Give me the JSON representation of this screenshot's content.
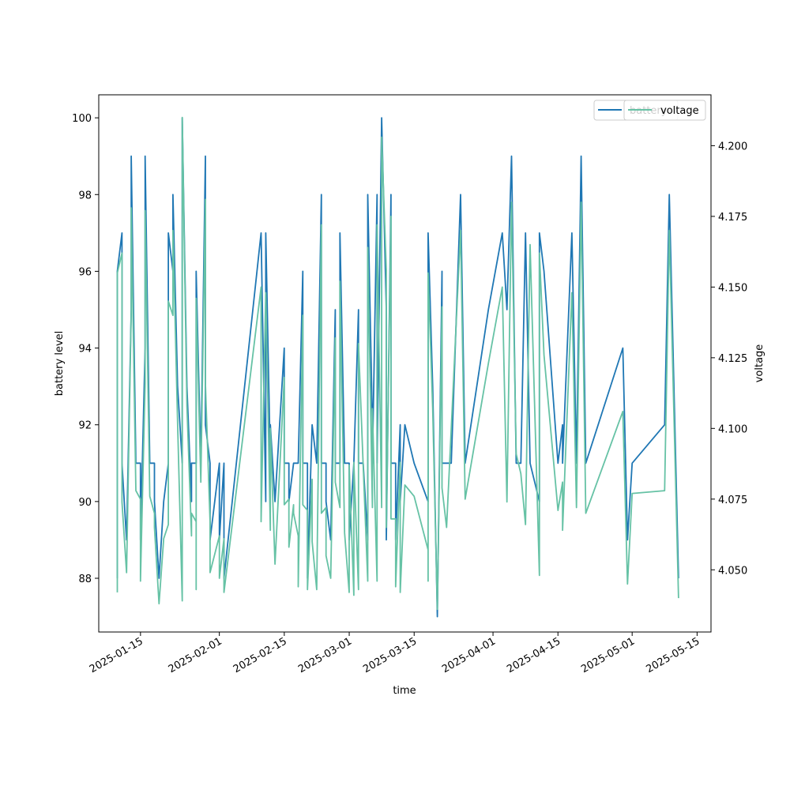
{
  "chart_data": {
    "type": "line",
    "title": "",
    "xlabel": "time",
    "ylabel": "battery level",
    "y2label": "voltage",
    "x_tick_labels": [
      "2025-01-15",
      "2025-02-01",
      "2025-02-15",
      "2025-03-01",
      "2025-03-15",
      "2025-04-01",
      "2025-04-15",
      "2025-05-01",
      "2025-05-15"
    ],
    "y_tick_labels": [
      "88",
      "90",
      "92",
      "94",
      "96",
      "98",
      "100"
    ],
    "y2_tick_labels": [
      "4.050",
      "4.075",
      "4.100",
      "4.125",
      "4.150",
      "4.175",
      "4.200"
    ],
    "xlim": [
      "2025-01-06",
      "2025-05-18"
    ],
    "ylim": [
      86.6,
      100.6
    ],
    "y2lim": [
      4.028,
      4.218
    ],
    "legend_placement": "top-right",
    "grid": false,
    "colors": {
      "battery": "#1f77b4",
      "voltage": "#66c2a5"
    },
    "series": [
      {
        "name": "battery",
        "axis": "left",
        "points": [
          [
            "2025-01-10",
            88
          ],
          [
            "2025-01-10",
            96
          ],
          [
            "2025-01-11",
            97
          ],
          [
            "2025-01-11",
            91
          ],
          [
            "2025-01-12",
            89
          ],
          [
            "2025-01-13",
            95
          ],
          [
            "2025-01-13",
            99
          ],
          [
            "2025-01-14",
            91
          ],
          [
            "2025-01-15",
            91
          ],
          [
            "2025-01-15",
            89
          ],
          [
            "2025-01-16",
            94
          ],
          [
            "2025-01-16",
            99
          ],
          [
            "2025-01-17",
            91
          ],
          [
            "2025-01-18",
            91
          ],
          [
            "2025-01-18",
            90
          ],
          [
            "2025-01-19",
            88
          ],
          [
            "2025-01-20",
            90
          ],
          [
            "2025-01-21",
            91
          ],
          [
            "2025-01-21",
            97
          ],
          [
            "2025-01-22",
            96
          ],
          [
            "2025-01-22",
            98
          ],
          [
            "2025-01-23",
            93
          ],
          [
            "2025-01-24",
            91
          ],
          [
            "2025-01-24",
            100
          ],
          [
            "2025-01-25",
            93
          ],
          [
            "2025-01-26",
            90
          ],
          [
            "2025-01-26",
            91
          ],
          [
            "2025-01-27",
            91
          ],
          [
            "2025-01-27",
            92
          ],
          [
            "2025-01-27",
            96
          ],
          [
            "2025-01-28",
            91
          ],
          [
            "2025-01-29",
            99
          ],
          [
            "2025-01-29",
            92
          ],
          [
            "2025-01-30",
            91
          ],
          [
            "2025-01-30",
            89
          ],
          [
            "2025-02-01",
            91
          ],
          [
            "2025-02-01",
            89
          ],
          [
            "2025-02-02",
            91
          ],
          [
            "2025-02-02",
            88
          ],
          [
            "2025-02-10",
            97
          ],
          [
            "2025-02-11",
            90
          ],
          [
            "2025-02-11",
            97
          ],
          [
            "2025-02-12",
            91
          ],
          [
            "2025-02-12",
            92
          ],
          [
            "2025-02-13",
            90
          ],
          [
            "2025-02-15",
            94
          ],
          [
            "2025-02-15",
            91
          ],
          [
            "2025-02-16",
            91
          ],
          [
            "2025-02-16",
            90
          ],
          [
            "2025-02-17",
            91
          ],
          [
            "2025-02-18",
            91
          ],
          [
            "2025-02-19",
            96
          ],
          [
            "2025-02-19",
            91
          ],
          [
            "2025-02-20",
            91
          ],
          [
            "2025-02-20",
            88
          ],
          [
            "2025-02-21",
            92
          ],
          [
            "2025-02-22",
            91
          ],
          [
            "2025-02-22",
            91
          ],
          [
            "2025-02-23",
            98
          ],
          [
            "2025-02-23",
            91
          ],
          [
            "2025-02-24",
            91
          ],
          [
            "2025-02-24",
            90
          ],
          [
            "2025-02-25",
            89
          ],
          [
            "2025-02-26",
            95
          ],
          [
            "2025-02-26",
            91
          ],
          [
            "2025-02-27",
            91
          ],
          [
            "2025-02-27",
            97
          ],
          [
            "2025-02-28",
            91
          ],
          [
            "2025-03-01",
            91
          ],
          [
            "2025-03-01",
            89
          ],
          [
            "2025-03-02",
            91
          ],
          [
            "2025-03-02",
            91
          ],
          [
            "2025-03-03",
            95
          ],
          [
            "2025-03-03",
            91
          ],
          [
            "2025-03-04",
            91
          ],
          [
            "2025-03-05",
            89
          ],
          [
            "2025-03-05",
            98
          ],
          [
            "2025-03-06",
            92
          ],
          [
            "2025-03-06",
            91
          ],
          [
            "2025-03-07",
            98
          ],
          [
            "2025-03-07",
            91
          ],
          [
            "2025-03-08",
            100
          ],
          [
            "2025-03-09",
            95
          ],
          [
            "2025-03-09",
            89
          ],
          [
            "2025-03-10",
            98
          ],
          [
            "2025-03-10",
            91
          ],
          [
            "2025-03-11",
            91
          ],
          [
            "2025-03-11",
            89
          ],
          [
            "2025-03-12",
            92
          ],
          [
            "2025-03-12",
            90
          ],
          [
            "2025-03-13",
            92
          ],
          [
            "2025-03-15",
            91
          ],
          [
            "2025-03-18",
            90
          ],
          [
            "2025-03-18",
            97
          ],
          [
            "2025-03-19",
            93
          ],
          [
            "2025-03-20",
            87
          ],
          [
            "2025-03-21",
            96
          ],
          [
            "2025-03-21",
            91
          ],
          [
            "2025-03-23",
            91
          ],
          [
            "2025-03-25",
            98
          ],
          [
            "2025-03-26",
            91
          ],
          [
            "2025-03-31",
            95
          ],
          [
            "2025-04-03",
            97
          ],
          [
            "2025-04-04",
            95
          ],
          [
            "2025-04-05",
            99
          ],
          [
            "2025-04-06",
            91
          ],
          [
            "2025-04-07",
            91
          ],
          [
            "2025-04-08",
            97
          ],
          [
            "2025-04-09",
            91
          ],
          [
            "2025-04-11",
            90
          ],
          [
            "2025-04-11",
            97
          ],
          [
            "2025-04-12",
            96
          ],
          [
            "2025-04-15",
            91
          ],
          [
            "2025-04-16",
            92
          ],
          [
            "2025-04-16",
            91
          ],
          [
            "2025-04-18",
            97
          ],
          [
            "2025-04-19",
            91
          ],
          [
            "2025-04-20",
            99
          ],
          [
            "2025-04-21",
            91
          ],
          [
            "2025-04-29",
            94
          ],
          [
            "2025-04-30",
            89
          ],
          [
            "2025-05-01",
            91
          ],
          [
            "2025-05-08",
            92
          ],
          [
            "2025-05-09",
            98
          ],
          [
            "2025-05-11",
            88
          ]
        ]
      },
      {
        "name": "voltage",
        "axis": "right",
        "points": [
          [
            "2025-01-10",
            4.042
          ],
          [
            "2025-01-10",
            4.155
          ],
          [
            "2025-01-11",
            4.162
          ],
          [
            "2025-01-11",
            4.074
          ],
          [
            "2025-01-12",
            4.049
          ],
          [
            "2025-01-13",
            4.141
          ],
          [
            "2025-01-13",
            4.178
          ],
          [
            "2025-01-14",
            4.078
          ],
          [
            "2025-01-15",
            4.075
          ],
          [
            "2025-01-15",
            4.046
          ],
          [
            "2025-01-16",
            4.116
          ],
          [
            "2025-01-16",
            4.177
          ],
          [
            "2025-01-17",
            4.076
          ],
          [
            "2025-01-18",
            4.07
          ],
          [
            "2025-01-18",
            4.065
          ],
          [
            "2025-01-19",
            4.038
          ],
          [
            "2025-01-20",
            4.061
          ],
          [
            "2025-01-21",
            4.066
          ],
          [
            "2025-01-21",
            4.145
          ],
          [
            "2025-01-22",
            4.14
          ],
          [
            "2025-01-22",
            4.17
          ],
          [
            "2025-01-23",
            4.102
          ],
          [
            "2025-01-24",
            4.039
          ],
          [
            "2025-01-24",
            4.21
          ],
          [
            "2025-01-25",
            4.108
          ],
          [
            "2025-01-26",
            4.062
          ],
          [
            "2025-01-26",
            4.07
          ],
          [
            "2025-01-27",
            4.067
          ],
          [
            "2025-01-27",
            4.043
          ],
          [
            "2025-01-27",
            4.146
          ],
          [
            "2025-01-28",
            4.081
          ],
          [
            "2025-01-29",
            4.181
          ],
          [
            "2025-01-29",
            4.116
          ],
          [
            "2025-01-30",
            4.067
          ],
          [
            "2025-01-30",
            4.049
          ],
          [
            "2025-02-01",
            4.062
          ],
          [
            "2025-02-01",
            4.047
          ],
          [
            "2025-02-02",
            4.061
          ],
          [
            "2025-02-02",
            4.042
          ],
          [
            "2025-02-10",
            4.15
          ],
          [
            "2025-02-10",
            4.067
          ],
          [
            "2025-02-11",
            4.148
          ],
          [
            "2025-02-12",
            4.064
          ],
          [
            "2025-02-12",
            4.1
          ],
          [
            "2025-02-13",
            4.052
          ],
          [
            "2025-02-15",
            4.118
          ],
          [
            "2025-02-15",
            4.073
          ],
          [
            "2025-02-16",
            4.075
          ],
          [
            "2025-02-16",
            4.058
          ],
          [
            "2025-02-17",
            4.073
          ],
          [
            "2025-02-17",
            4.07
          ],
          [
            "2025-02-18",
            4.062
          ],
          [
            "2025-02-18",
            4.044
          ],
          [
            "2025-02-19",
            4.14
          ],
          [
            "2025-02-19",
            4.073
          ],
          [
            "2025-02-20",
            4.071
          ],
          [
            "2025-02-20",
            4.043
          ],
          [
            "2025-02-21",
            4.082
          ],
          [
            "2025-02-21",
            4.06
          ],
          [
            "2025-02-22",
            4.043
          ],
          [
            "2025-02-23",
            4.172
          ],
          [
            "2025-02-23",
            4.07
          ],
          [
            "2025-02-24",
            4.072
          ],
          [
            "2025-02-24",
            4.055
          ],
          [
            "2025-02-25",
            4.047
          ],
          [
            "2025-02-26",
            4.132
          ],
          [
            "2025-02-26",
            4.081
          ],
          [
            "2025-02-27",
            4.072
          ],
          [
            "2025-02-27",
            4.152
          ],
          [
            "2025-02-28",
            4.063
          ],
          [
            "2025-03-01",
            4.042
          ],
          [
            "2025-03-01",
            4.087
          ],
          [
            "2025-03-02",
            4.041
          ],
          [
            "2025-03-02",
            4.088
          ],
          [
            "2025-03-03",
            4.043
          ],
          [
            "2025-03-03",
            4.13
          ],
          [
            "2025-03-04",
            4.087
          ],
          [
            "2025-03-05",
            4.046
          ],
          [
            "2025-03-05",
            4.164
          ],
          [
            "2025-03-06",
            4.072
          ],
          [
            "2025-03-06",
            4.107
          ],
          [
            "2025-03-07",
            4.046
          ],
          [
            "2025-03-07",
            4.172
          ],
          [
            "2025-03-08",
            4.072
          ],
          [
            "2025-03-08",
            4.203
          ],
          [
            "2025-03-09",
            4.156
          ],
          [
            "2025-03-09",
            4.065
          ],
          [
            "2025-03-10",
            4.175
          ],
          [
            "2025-03-10",
            4.068
          ],
          [
            "2025-03-11",
            4.068
          ],
          [
            "2025-03-11",
            4.044
          ],
          [
            "2025-03-12",
            4.088
          ],
          [
            "2025-03-12",
            4.042
          ],
          [
            "2025-03-13",
            4.08
          ],
          [
            "2025-03-15",
            4.076
          ],
          [
            "2025-03-18",
            4.057
          ],
          [
            "2025-03-18",
            4.046
          ],
          [
            "2025-03-18",
            4.155
          ],
          [
            "2025-03-19",
            4.107
          ],
          [
            "2025-03-20",
            4.036
          ],
          [
            "2025-03-21",
            4.143
          ],
          [
            "2025-03-21",
            4.079
          ],
          [
            "2025-03-22",
            4.065
          ],
          [
            "2025-03-25",
            4.17
          ],
          [
            "2025-03-26",
            4.075
          ],
          [
            "2025-03-31",
            4.123
          ],
          [
            "2025-04-03",
            4.15
          ],
          [
            "2025-04-04",
            4.074
          ],
          [
            "2025-04-05",
            4.18
          ],
          [
            "2025-04-06",
            4.091
          ],
          [
            "2025-04-07",
            4.084
          ],
          [
            "2025-04-08",
            4.066
          ],
          [
            "2025-04-09",
            4.165
          ],
          [
            "2025-04-11",
            4.048
          ],
          [
            "2025-04-11",
            4.162
          ],
          [
            "2025-04-12",
            4.126
          ],
          [
            "2025-04-15",
            4.071
          ],
          [
            "2025-04-16",
            4.081
          ],
          [
            "2025-04-16",
            4.064
          ],
          [
            "2025-04-18",
            4.148
          ],
          [
            "2025-04-19",
            4.072
          ],
          [
            "2025-04-20",
            4.18
          ],
          [
            "2025-04-21",
            4.07
          ],
          [
            "2025-04-29",
            4.106
          ],
          [
            "2025-04-30",
            4.045
          ],
          [
            "2025-05-01",
            4.077
          ],
          [
            "2025-05-08",
            4.078
          ],
          [
            "2025-05-09",
            4.17
          ],
          [
            "2025-05-11",
            4.04
          ]
        ]
      }
    ]
  }
}
